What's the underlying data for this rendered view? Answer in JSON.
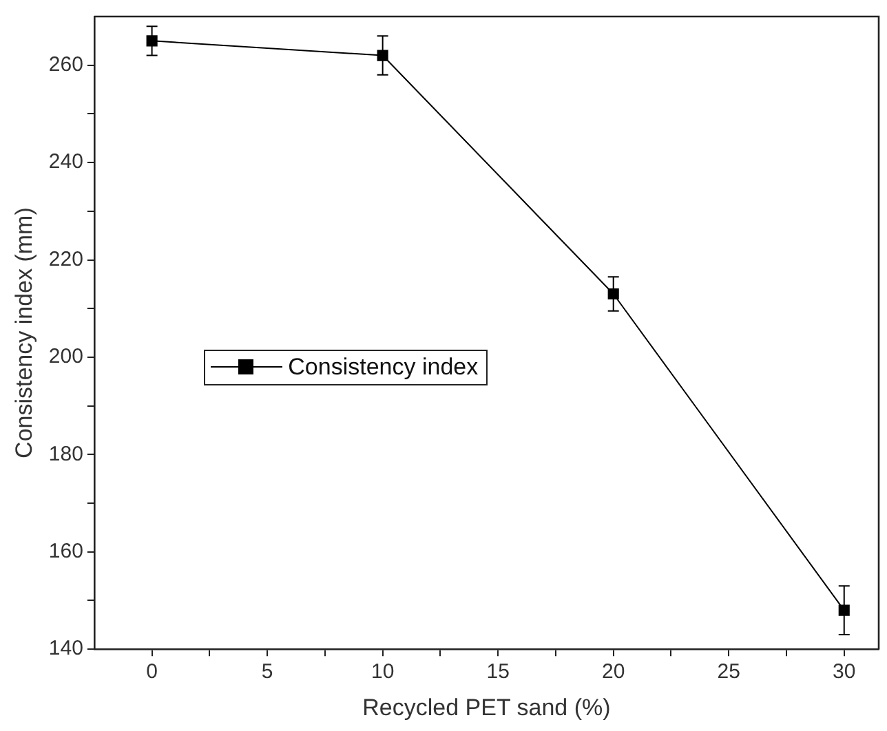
{
  "chart_data": {
    "type": "line",
    "xlabel": "Recycled PET sand (%)",
    "ylabel": "Consistency index (mm)",
    "x": [
      0,
      10,
      20,
      30
    ],
    "series": [
      {
        "name": "Consistency index",
        "color": "#000000",
        "values": [
          265,
          262,
          213,
          148
        ],
        "errors": [
          3,
          4,
          3.5,
          5
        ]
      }
    ],
    "xlim": [
      -2.5,
      31.5
    ],
    "xticks": [
      0,
      {
        "value": 2.5,
        "label": null
      },
      5,
      {
        "value": 7.5,
        "label": null
      },
      10,
      {
        "value": 12.5,
        "label": null
      },
      15,
      {
        "value": 17.5,
        "label": null
      },
      20,
      {
        "value": 22.5,
        "label": null
      },
      25,
      {
        "value": 27.5,
        "label": null
      },
      30
    ],
    "ylim": [
      140,
      270
    ],
    "yticks": [
      140,
      {
        "value": 150,
        "label": null
      },
      160,
      {
        "value": 170,
        "label": null
      },
      180,
      {
        "value": 190,
        "label": null
      },
      200,
      {
        "value": 210,
        "label": null
      },
      220,
      {
        "value": 230,
        "label": null
      },
      240,
      {
        "value": 250,
        "label": null
      },
      260
    ],
    "marker": "square",
    "line_style": "solid",
    "grid": false,
    "legend": "left"
  }
}
